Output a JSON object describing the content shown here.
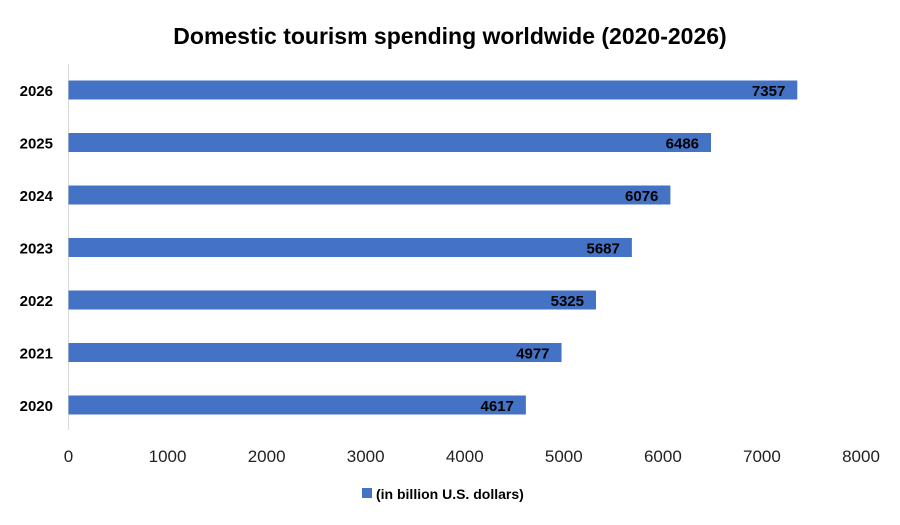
{
  "chart_data": {
    "type": "bar",
    "orientation": "horizontal",
    "title": "Domestic tourism spending worldwide (2020-2026)",
    "categories": [
      "2020",
      "2021",
      "2022",
      "2023",
      "2024",
      "2025",
      "2026"
    ],
    "series": [
      {
        "name": "(in billion U.S. dollars)",
        "values": [
          4617,
          4977,
          5325,
          5687,
          6076,
          6486,
          7357
        ]
      }
    ],
    "xlim": [
      0,
      8000
    ],
    "xticks": [
      0,
      1000,
      2000,
      3000,
      4000,
      5000,
      6000,
      7000,
      8000
    ],
    "grid": false,
    "legend_position": "bottom",
    "data_labels": true,
    "colors": {
      "bar": "#4472C4",
      "axis": "#D9D9D9"
    }
  }
}
